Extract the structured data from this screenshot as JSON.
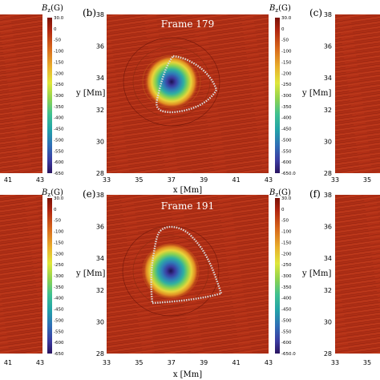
{
  "panels": {
    "b": {
      "label": "(b)",
      "frame": "Frame 179"
    },
    "c": {
      "label": "(c)"
    },
    "e": {
      "label": "(e)",
      "frame": "Frame 191"
    },
    "f": {
      "label": "(f)"
    }
  },
  "axes": {
    "x_label": "x [Mm]",
    "y_label": "y [Mm]",
    "x_ticks_center": [
      "33",
      "35",
      "37",
      "39",
      "41",
      "43"
    ],
    "x_ticks_left": [
      "41",
      "43"
    ],
    "x_ticks_right": [
      "33",
      "35"
    ],
    "y_ticks": [
      "38",
      "36",
      "34",
      "32",
      "30",
      "28"
    ]
  },
  "colorbar": {
    "title": "Bz(G)",
    "title_main": "B",
    "title_sub": "z",
    "title_unit": "(G)",
    "ticks": [
      "30.0",
      "0",
      "-50",
      "-100",
      "-150",
      "-200",
      "-250",
      "-300",
      "-350",
      "-400",
      "-450",
      "-500",
      "-550",
      "-600",
      "-650"
    ],
    "bottom_label_top_bars": "-650",
    "bottom_label_center_bars": "-650.0",
    "colors": [
      "#b02510",
      "#cf4a18",
      "#e9a62a",
      "#f3e33a",
      "#a8d84a",
      "#46c38a",
      "#22a3a8",
      "#2f6fb6",
      "#3b3aa0",
      "#2a1460"
    ]
  },
  "colors": {
    "background_field": "#b33016",
    "flux_loop": "#dcdcdc"
  }
}
